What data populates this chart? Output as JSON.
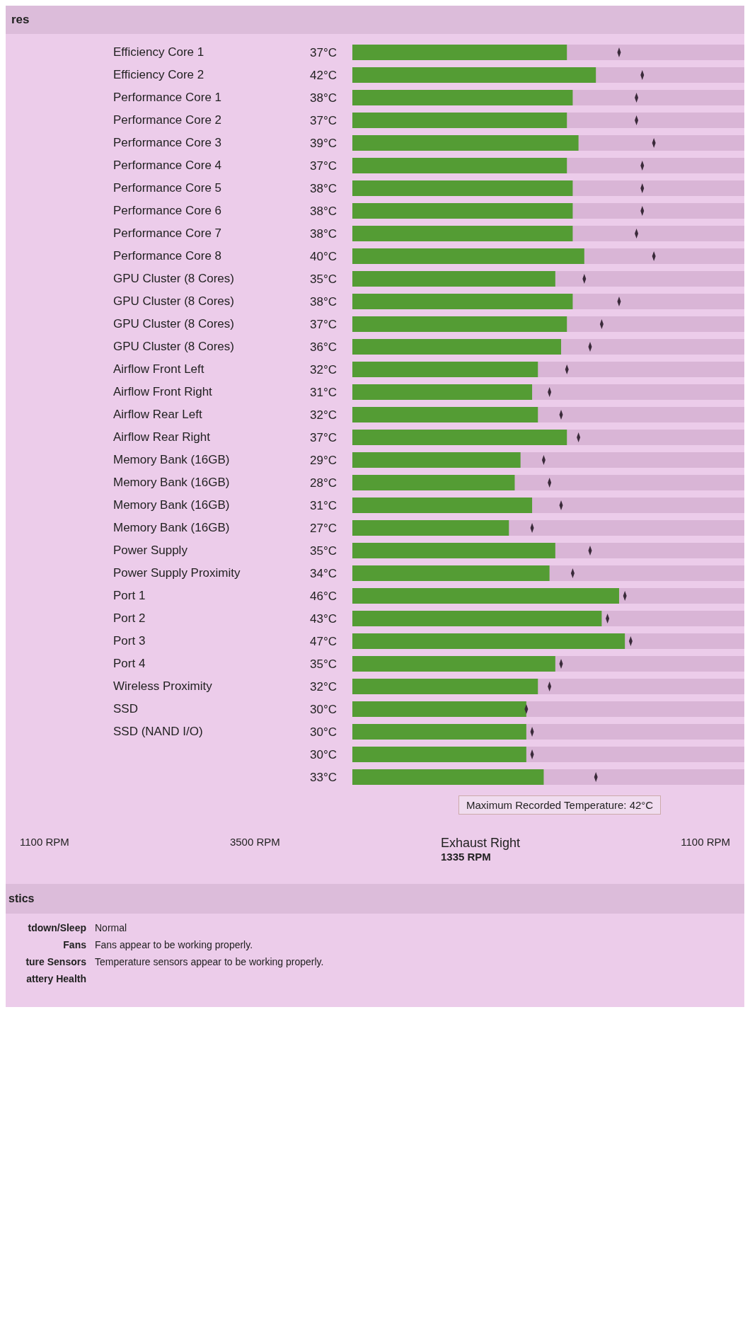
{
  "chart_data": {
    "type": "bar",
    "orientation": "horizontal",
    "categories": [
      "Efficiency Core 1",
      "Efficiency Core 2",
      "Performance Core 1",
      "Performance Core 2",
      "Performance Core 3",
      "Performance Core 4",
      "Performance Core 5",
      "Performance Core 6",
      "Performance Core 7",
      "Performance Core 8",
      "GPU Cluster (8 Cores)",
      "GPU Cluster (8 Cores)",
      "GPU Cluster (8 Cores)",
      "GPU Cluster (8 Cores)",
      "Airflow Front Left",
      "Airflow Front Right",
      "Airflow Rear Left",
      "Airflow Rear Right",
      "Memory Bank (16GB)",
      "Memory Bank (16GB)",
      "Memory Bank (16GB)",
      "Memory Bank (16GB)",
      "Power Supply",
      "Power Supply Proximity",
      "Port 1",
      "Port 2",
      "Port 3",
      "Port 4",
      "Wireless Proximity",
      "SSD",
      "SSD (NAND I/O)",
      null,
      null
    ],
    "series": [
      {
        "type": "bar",
        "color": "#549c34",
        "values": [
          37,
          42,
          38,
          37,
          39,
          37,
          38,
          38,
          38,
          40,
          35,
          38,
          37,
          36,
          32,
          31,
          32,
          37,
          29,
          28,
          31,
          27,
          35,
          34,
          46,
          43,
          47,
          35,
          32,
          30,
          30,
          30,
          33
        ],
        "value_labels": [
          "37°C",
          "42°C",
          "38°C",
          "37°C",
          "39°C",
          "37°C",
          "38°C",
          "38°C",
          "38°C",
          "40°C",
          "35°C",
          "38°C",
          "37°C",
          "36°C",
          "32°C",
          "31°C",
          "32°C",
          "37°C",
          "29°C",
          "28°C",
          "31°C",
          "27°C",
          "35°C",
          "34°C",
          "46°C",
          "43°C",
          "47°C",
          "35°C",
          "32°C",
          "30°C",
          "30°C",
          "30°C",
          "33°C"
        ]
      },
      {
        "type": "scatter",
        "color": "#3a2a3a",
        "values": [
          46,
          50,
          49,
          49,
          52,
          50,
          50,
          50,
          49,
          52,
          40,
          46,
          43,
          41,
          37,
          34,
          36,
          39,
          33,
          34,
          36,
          31,
          41,
          38,
          47,
          44,
          48,
          36,
          34,
          30,
          31,
          31,
          42
        ]
      }
    ],
    "annotations": [
      "res",
      "Maximum Recorded Temperature: 42°C",
      "1100 RPM",
      "3500 RPM",
      "Exhaust Right",
      "1335 RPM",
      "1100 RPM",
      "stics",
      "tdown/Sleep",
      "Normal",
      "Fans",
      "Fans appear to be working properly.",
      "ture Sensors",
      "Temperature sensors appear to be working properly.",
      "attery Health"
    ]
  }
}
